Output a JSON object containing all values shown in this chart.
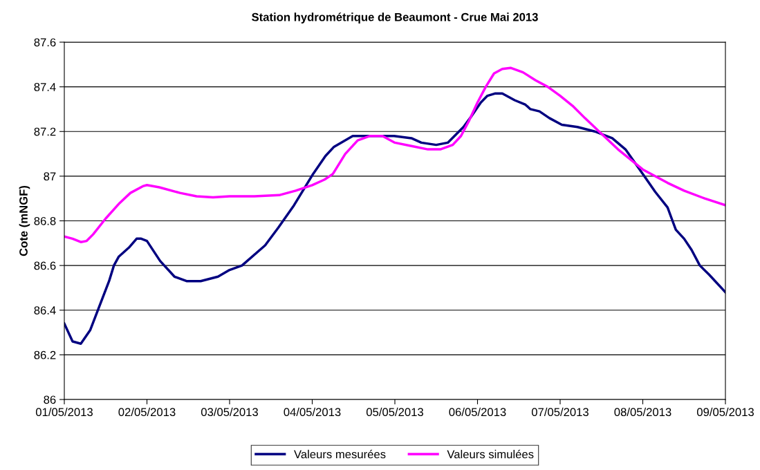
{
  "chart_data": {
    "type": "line",
    "title": "Station hydrométrique de Beaumont - Crue Mai 2013",
    "ylabel": "Cote (mNGF)",
    "xlim": [
      "2013-05-01",
      "2013-05-09"
    ],
    "xticks": [
      {
        "value": "2013-05-01",
        "label": "01/05/2013"
      },
      {
        "value": "2013-05-02",
        "label": "02/05/2013"
      },
      {
        "value": "2013-05-03",
        "label": "03/05/2013"
      },
      {
        "value": "2013-05-04",
        "label": "04/05/2013"
      },
      {
        "value": "2013-05-05",
        "label": "05/05/2013"
      },
      {
        "value": "2013-05-06",
        "label": "06/05/2013"
      },
      {
        "value": "2013-05-07",
        "label": "07/05/2013"
      },
      {
        "value": "2013-05-08",
        "label": "08/05/2013"
      },
      {
        "value": "2013-05-09",
        "label": "09/05/2013"
      }
    ],
    "ylim": [
      86,
      87.6
    ],
    "yticks": [
      86,
      86.2,
      86.4,
      86.6,
      86.8,
      87,
      87.2,
      87.4,
      87.6
    ],
    "grid": "y",
    "legend": "bottom",
    "marker": "none",
    "line_style": "solid",
    "series": [
      {
        "name": "Valeurs mesurées",
        "color": "#000080",
        "x": [
          "2013-05-01T00:00",
          "2013-05-01T02:24",
          "2013-05-01T04:48",
          "2013-05-01T07:30",
          "2013-05-01T13:00",
          "2013-05-01T14:24",
          "2013-05-01T15:50",
          "2013-05-01T18:45",
          "2013-05-01T21:00",
          "2013-05-01T22:20",
          "2013-05-02T00:00",
          "2013-05-02T03:50",
          "2013-05-02T08:00",
          "2013-05-02T11:30",
          "2013-05-02T15:36",
          "2013-05-02T20:38",
          "2013-05-03T00:00",
          "2013-05-03T03:36",
          "2013-05-03T10:19",
          "2013-05-03T14:10",
          "2013-05-03T18:43",
          "2013-05-04T00:15",
          "2013-05-04T03:50",
          "2013-05-04T06:14",
          "2013-05-04T11:46",
          "2013-05-04T19:41",
          "2013-05-04T23:46",
          "2013-05-05T04:48",
          "2013-05-05T07:41",
          "2013-05-05T12:00",
          "2013-05-05T15:22",
          "2013-05-05T19:55",
          "2013-05-05T22:19",
          "2013-05-06T00:58",
          "2013-05-06T02:53",
          "2013-05-06T05:02",
          "2013-05-06T07:12",
          "2013-05-06T10:48",
          "2013-05-06T13:55",
          "2013-05-06T15:22",
          "2013-05-06T18:00",
          "2013-05-06T20:53",
          "2013-05-07T00:29",
          "2013-05-07T05:02",
          "2013-05-07T10:05",
          "2013-05-07T15:07",
          "2013-05-07T18:58",
          "2013-05-08T00:00",
          "2013-05-08T03:36",
          "2013-05-08T07:12",
          "2013-05-08T08:38",
          "2013-05-08T09:36",
          "2013-05-08T12:00",
          "2013-05-08T14:10",
          "2013-05-08T16:34",
          "2013-05-08T19:12",
          "2013-05-09T00:00"
        ],
        "values": [
          86.34,
          86.26,
          86.25,
          86.31,
          86.53,
          86.6,
          86.64,
          86.68,
          86.72,
          86.72,
          86.71,
          86.62,
          86.55,
          86.53,
          86.53,
          86.55,
          86.58,
          86.6,
          86.69,
          86.77,
          86.87,
          87.01,
          87.09,
          87.13,
          87.18,
          87.18,
          87.18,
          87.17,
          87.15,
          87.14,
          87.15,
          87.22,
          87.27,
          87.33,
          87.36,
          87.37,
          87.37,
          87.34,
          87.32,
          87.3,
          87.29,
          87.26,
          87.23,
          87.22,
          87.2,
          87.17,
          87.12,
          87.01,
          86.93,
          86.86,
          86.8,
          86.76,
          86.72,
          86.67,
          86.6,
          86.56,
          86.48
        ]
      },
      {
        "name": "Valeurs simulées",
        "color": "#ff00ff",
        "x": [
          "2013-05-01T00:00",
          "2013-05-01T02:24",
          "2013-05-01T04:48",
          "2013-05-01T06:29",
          "2013-05-01T08:24",
          "2013-05-01T12:00",
          "2013-05-01T16:05",
          "2013-05-01T19:12",
          "2013-05-01T22:48",
          "2013-05-02T00:00",
          "2013-05-02T03:36",
          "2013-05-02T09:36",
          "2013-05-02T14:24",
          "2013-05-02T19:12",
          "2013-05-03T00:00",
          "2013-05-03T07:12",
          "2013-05-03T14:24",
          "2013-05-03T19:12",
          "2013-05-04T00:00",
          "2013-05-04T03:36",
          "2013-05-04T06:00",
          "2013-05-04T09:36",
          "2013-05-04T13:12",
          "2013-05-04T16:48",
          "2013-05-04T20:24",
          "2013-05-05T00:00",
          "2013-05-05T04:48",
          "2013-05-05T09:36",
          "2013-05-05T13:12",
          "2013-05-05T16:48",
          "2013-05-05T19:12",
          "2013-05-05T21:36",
          "2013-05-06T00:00",
          "2013-05-06T02:24",
          "2013-05-06T04:48",
          "2013-05-06T07:12",
          "2013-05-06T09:36",
          "2013-05-06T13:12",
          "2013-05-06T16:48",
          "2013-05-06T20:24",
          "2013-05-07T00:00",
          "2013-05-07T03:36",
          "2013-05-07T07:12",
          "2013-05-07T12:00",
          "2013-05-07T16:48",
          "2013-05-08T00:00",
          "2013-05-08T07:12",
          "2013-05-08T12:00",
          "2013-05-08T18:00",
          "2013-05-09T00:00"
        ],
        "values": [
          86.73,
          86.72,
          86.705,
          86.71,
          86.74,
          86.81,
          86.88,
          86.925,
          86.955,
          86.96,
          86.95,
          86.925,
          86.91,
          86.905,
          86.91,
          86.91,
          86.915,
          86.935,
          86.96,
          86.985,
          87.01,
          87.1,
          87.16,
          87.18,
          87.18,
          87.15,
          87.135,
          87.12,
          87.12,
          87.14,
          87.18,
          87.25,
          87.33,
          87.4,
          87.46,
          87.48,
          87.485,
          87.465,
          87.43,
          87.4,
          87.36,
          87.315,
          87.26,
          87.19,
          87.12,
          87.03,
          86.97,
          86.935,
          86.9,
          86.87
        ]
      }
    ]
  }
}
